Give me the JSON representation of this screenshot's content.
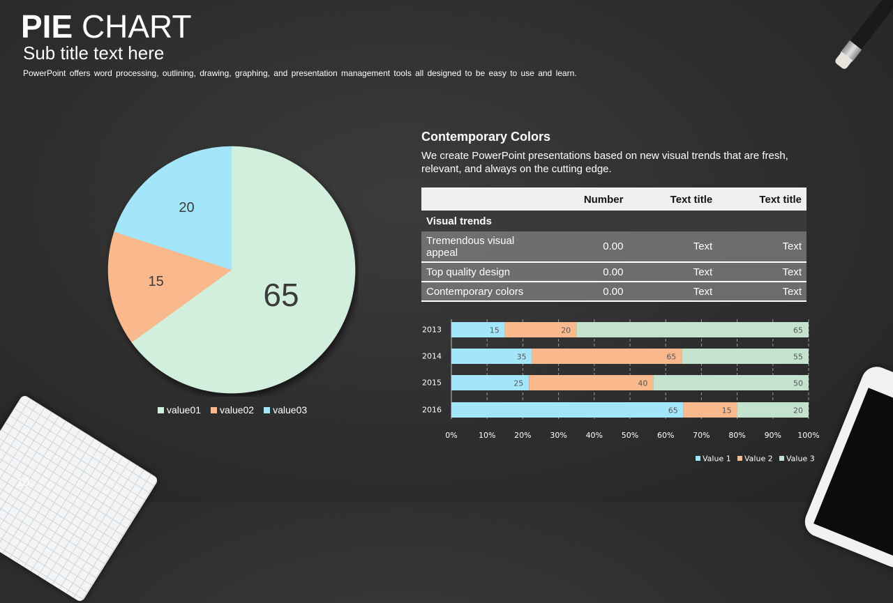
{
  "header": {
    "title_bold": "PIE",
    "title_rest": "CHART",
    "subtitle": "Sub title text here",
    "description": "PowerPoint offers word processing, outlining, drawing, graphing, and presentation management tools all designed to be easy to use and learn."
  },
  "page_number": "10",
  "section": {
    "heading": "Contemporary Colors",
    "body": "We create PowerPoint presentations based on new visual trends that are fresh, relevant, and always on the cutting edge."
  },
  "table": {
    "columns": [
      "",
      "Number",
      "Text title",
      "Text title"
    ],
    "section_label": "Visual trends",
    "rows": [
      [
        "Tremendous visual appeal",
        "0.00",
        "Text",
        "Text"
      ],
      [
        "Top quality design",
        "0.00",
        "Text",
        "Text"
      ],
      [
        "Contemporary colors",
        "0.00",
        "Text",
        "Text"
      ]
    ]
  },
  "chart_data": [
    {
      "type": "pie",
      "categories": [
        "value01",
        "value02",
        "value03"
      ],
      "values": [
        65,
        15,
        20
      ],
      "colors": [
        "#d2eedc",
        "#f9b98d",
        "#a3e6fc"
      ],
      "legend": "bottom"
    },
    {
      "type": "bar",
      "orientation": "horizontal",
      "stacked": "percent",
      "categories": [
        "2013",
        "2014",
        "2015",
        "2016"
      ],
      "series": [
        {
          "name": "Value 1",
          "values": [
            15,
            35,
            25,
            65
          ],
          "color": "#a3e6fc"
        },
        {
          "name": "Value 2",
          "values": [
            20,
            65,
            40,
            15
          ],
          "color": "#f9b98d"
        },
        {
          "name": "Value 3",
          "values": [
            65,
            55,
            50,
            20
          ],
          "color": "#c3e3cf"
        }
      ],
      "xticks": [
        "0%",
        "10%",
        "20%",
        "30%",
        "40%",
        "50%",
        "60%",
        "70%",
        "80%",
        "90%",
        "100%"
      ],
      "xlim": [
        0,
        100
      ],
      "grid": true,
      "legend": "bottom-right"
    }
  ]
}
